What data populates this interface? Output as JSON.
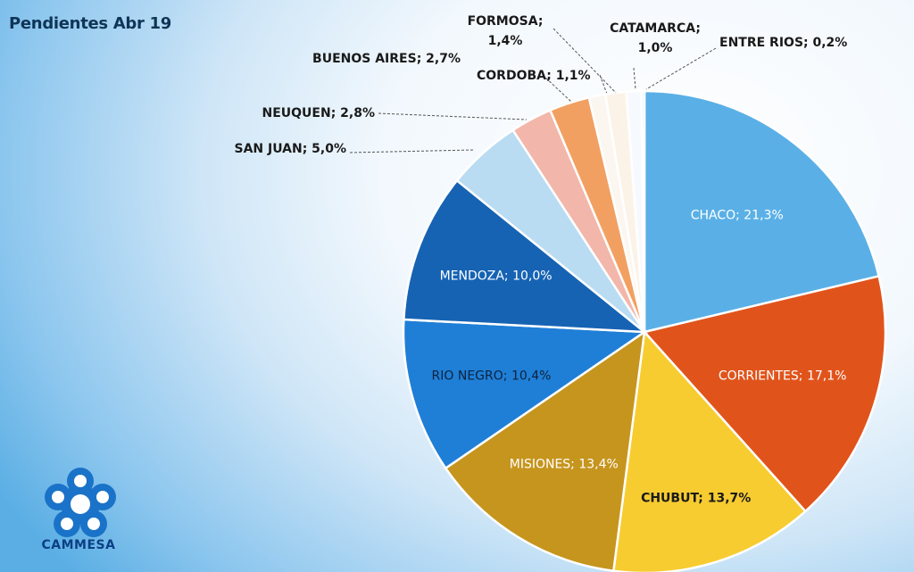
{
  "chart_data": {
    "type": "pie",
    "title": "Pendientes Abr 19",
    "slices": [
      {
        "name": "CHACO",
        "value": 21.3,
        "label": "CHACO; 21,3%",
        "color": "#5ab0e6"
      },
      {
        "name": "CORRIENTES",
        "value": 17.1,
        "label": "CORRIENTES; 17,1%",
        "color": "#e0541c"
      },
      {
        "name": "CHUBUT",
        "value": 13.7,
        "label": "CHUBUT; 13,7%",
        "color": "#f7cc30"
      },
      {
        "name": "MISIONES",
        "value": 13.4,
        "label": "MISIONES; 13,4%",
        "color": "#c6951e"
      },
      {
        "name": "RIO NEGRO",
        "value": 10.4,
        "label": "RIO NEGRO; 10,4%",
        "color": "#1f7fd6"
      },
      {
        "name": "MENDOZA",
        "value": 10.0,
        "label": "MENDOZA; 10,0%",
        "color": "#1663b4"
      },
      {
        "name": "SAN JUAN",
        "value": 5.0,
        "label": "SAN JUAN; 5,0%",
        "color": "#b9dcf3"
      },
      {
        "name": "NEUQUEN",
        "value": 2.8,
        "label": "NEUQUEN; 2,8%",
        "color": "#f2b7aa"
      },
      {
        "name": "BUENOS AIRES",
        "value": 2.7,
        "label": "BUENOS AIRES; 2,7%",
        "color": "#f2a062"
      },
      {
        "name": "CORDOBA",
        "value": 1.1,
        "label": "CORDOBA; 1,1%",
        "color": "#fbf6f0"
      },
      {
        "name": "FORMOSA",
        "value": 1.4,
        "label_lines": [
          "FORMOSA;",
          "1,4%"
        ],
        "color": "#fbf3e8"
      },
      {
        "name": "CATAMARCA",
        "value": 1.0,
        "label_lines": [
          "CATAMARCA;",
          "1,0%"
        ],
        "color": "#f6f9fd"
      },
      {
        "name": "ENTRE RIOS",
        "value": 0.2,
        "label": "ENTRE RIOS; 0,2%",
        "color": "#e8f2fb"
      }
    ]
  },
  "logo": {
    "text": "CAMMESA",
    "color": "#0b3f86"
  }
}
